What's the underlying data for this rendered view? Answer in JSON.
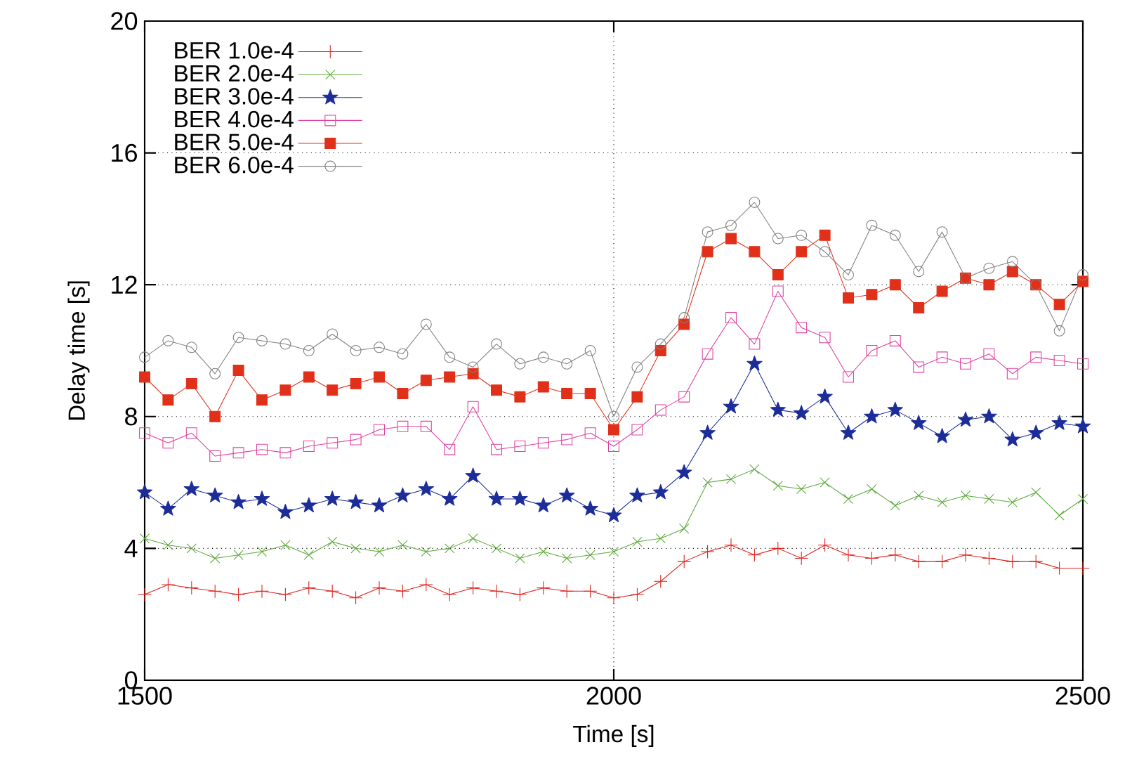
{
  "chart_data": {
    "type": "line",
    "xlabel": "Time [s]",
    "ylabel": "Delay time [s]",
    "x": [
      1500,
      1525,
      1550,
      1575,
      1600,
      1625,
      1650,
      1675,
      1700,
      1725,
      1750,
      1775,
      1800,
      1825,
      1850,
      1875,
      1900,
      1925,
      1950,
      1975,
      2000,
      2025,
      2050,
      2075,
      2100,
      2125,
      2150,
      2175,
      2200,
      2225,
      2250,
      2275,
      2300,
      2325,
      2350,
      2375,
      2400,
      2425,
      2450,
      2475,
      2500
    ],
    "series": [
      {
        "name": "BER 1.0e-4",
        "color": "#e0201a",
        "marker": "plus",
        "values": [
          2.6,
          2.9,
          2.8,
          2.7,
          2.6,
          2.7,
          2.6,
          2.8,
          2.7,
          2.5,
          2.8,
          2.7,
          2.9,
          2.6,
          2.8,
          2.7,
          2.6,
          2.8,
          2.7,
          2.7,
          2.5,
          2.6,
          3.0,
          3.6,
          3.9,
          4.1,
          3.8,
          4.0,
          3.7,
          4.1,
          3.8,
          3.7,
          3.8,
          3.6,
          3.6,
          3.8,
          3.7,
          3.6,
          3.6,
          3.4,
          3.4
        ]
      },
      {
        "name": "BER 2.0e-4",
        "color": "#5ca83a",
        "marker": "cross",
        "values": [
          4.3,
          4.1,
          4.0,
          3.7,
          3.8,
          3.9,
          4.1,
          3.8,
          4.2,
          4.0,
          3.9,
          4.1,
          3.9,
          4.0,
          4.3,
          4.0,
          3.7,
          3.9,
          3.7,
          3.8,
          3.9,
          4.2,
          4.3,
          4.6,
          6.0,
          6.1,
          6.4,
          5.9,
          5.8,
          6.0,
          5.5,
          5.8,
          5.3,
          5.6,
          5.4,
          5.6,
          5.5,
          5.4,
          5.7,
          5.0,
          5.5
        ]
      },
      {
        "name": "BER 3.0e-4",
        "color": "#1c2d9a",
        "marker": "star",
        "values": [
          5.7,
          5.2,
          5.8,
          5.6,
          5.4,
          5.5,
          5.1,
          5.3,
          5.5,
          5.4,
          5.3,
          5.6,
          5.8,
          5.5,
          6.2,
          5.5,
          5.5,
          5.3,
          5.6,
          5.2,
          5.0,
          5.6,
          5.7,
          6.3,
          7.5,
          8.3,
          9.6,
          8.2,
          8.1,
          8.6,
          7.5,
          8.0,
          8.2,
          7.8,
          7.4,
          7.9,
          8.0,
          7.3,
          7.5,
          7.8,
          7.7
        ]
      },
      {
        "name": "BER 4.0e-4",
        "color": "#e040a0",
        "marker": "square",
        "values": [
          7.5,
          7.2,
          7.5,
          6.8,
          6.9,
          7.0,
          6.9,
          7.1,
          7.2,
          7.3,
          7.6,
          7.7,
          7.7,
          7.0,
          8.3,
          7.0,
          7.1,
          7.2,
          7.3,
          7.5,
          7.1,
          7.6,
          8.2,
          8.6,
          9.9,
          11.0,
          10.2,
          11.8,
          10.7,
          10.4,
          9.2,
          10.0,
          10.3,
          9.5,
          9.8,
          9.6,
          9.9,
          9.3,
          9.8,
          9.7,
          9.6
        ]
      },
      {
        "name": "BER 5.0e-4",
        "color": "#e0301a",
        "marker": "square_filled",
        "values": [
          9.2,
          8.5,
          9.0,
          8.0,
          9.4,
          8.5,
          8.8,
          9.2,
          8.8,
          9.0,
          9.2,
          8.7,
          9.1,
          9.2,
          9.3,
          8.8,
          8.6,
          8.9,
          8.7,
          8.7,
          7.6,
          8.6,
          10.0,
          10.8,
          13.0,
          13.4,
          13.0,
          12.3,
          13.0,
          13.5,
          11.6,
          11.7,
          12.0,
          11.3,
          11.8,
          12.2,
          12.0,
          12.4,
          12.0,
          11.4,
          12.1
        ]
      },
      {
        "name": "BER 6.0e-4",
        "color": "#808080",
        "marker": "circle",
        "values": [
          9.8,
          10.3,
          10.1,
          9.3,
          10.4,
          10.3,
          10.2,
          10.0,
          10.5,
          10.0,
          10.1,
          9.9,
          10.8,
          9.8,
          9.5,
          10.2,
          9.6,
          9.8,
          9.6,
          10.0,
          8.0,
          9.5,
          10.2,
          11.0,
          13.6,
          13.8,
          14.5,
          13.4,
          13.5,
          13.0,
          12.3,
          13.8,
          13.5,
          12.4,
          13.6,
          12.2,
          12.5,
          12.7,
          12.0,
          10.6,
          12.3
        ]
      }
    ],
    "xlim": [
      1500,
      2500
    ],
    "xticks": [
      1500,
      2000,
      2500
    ],
    "ylim": [
      0,
      20
    ],
    "yticks": [
      0,
      4,
      8,
      12,
      16,
      20
    ],
    "grid": true,
    "legend": "top left",
    "line_style": "solid"
  }
}
